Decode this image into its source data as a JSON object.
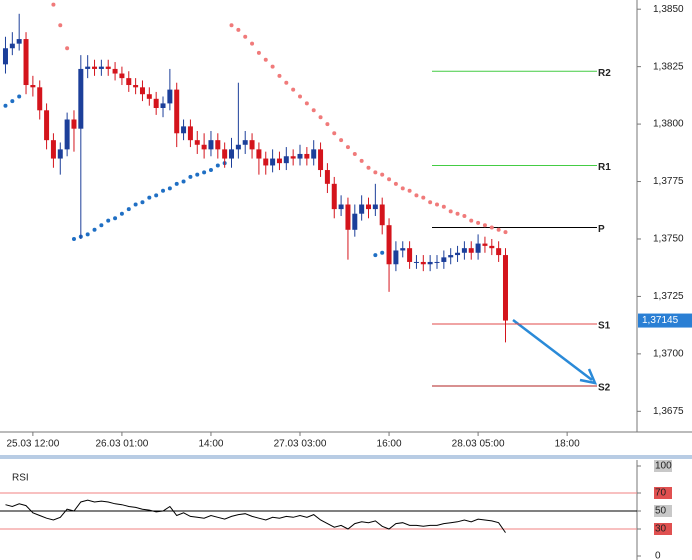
{
  "chart_data": [
    {
      "type": "candlestick",
      "xlim": [
        -0.8,
        92.2
      ],
      "xticks": [
        {
          "value": 4,
          "label": "25.03 12:00"
        },
        {
          "value": 17,
          "label": "26.03 01:00"
        },
        {
          "value": 30,
          "label": "14:00"
        },
        {
          "value": 43,
          "label": "27.03 03:00"
        },
        {
          "value": 56,
          "label": "16:00"
        },
        {
          "value": 69,
          "label": "28.03 05:00"
        },
        {
          "value": 82,
          "label": "18:00"
        }
      ],
      "ylim": [
        1.3666,
        1.3854
      ],
      "yticks": [
        {
          "value": 1.385,
          "label": "1,3850"
        },
        {
          "value": 1.3825,
          "label": "1,3825"
        },
        {
          "value": 1.38,
          "label": "1,3800"
        },
        {
          "value": 1.3775,
          "label": "1,3775"
        },
        {
          "value": 1.375,
          "label": "1,3750"
        },
        {
          "value": 1.3725,
          "label": "1,3725"
        },
        {
          "value": 1.37,
          "label": "1,3700"
        },
        {
          "value": 1.3675,
          "label": "1,3675"
        }
      ],
      "up_color": "#1c3f9a",
      "down_color": "#d4141c",
      "open": [
        1.3826,
        1.3833,
        1.3835,
        1.3837,
        1.3817,
        1.3816,
        1.3806,
        1.3793,
        1.3785,
        1.3789,
        1.3802,
        1.3798,
        1.3824,
        1.3825,
        1.3824,
        1.3825,
        1.3824,
        1.3822,
        1.382,
        1.3817,
        1.3816,
        1.3813,
        1.3811,
        1.3807,
        1.3809,
        1.3815,
        1.3796,
        1.3799,
        1.3793,
        1.3791,
        1.3789,
        1.3793,
        1.3789,
        1.3785,
        1.3789,
        1.3791,
        1.3793,
        1.3789,
        1.3785,
        1.3782,
        1.3785,
        1.3783,
        1.3786,
        1.3785,
        1.3787,
        1.3785,
        1.3789,
        1.378,
        1.3774,
        1.3763,
        1.3765,
        1.3754,
        1.3761,
        1.3765,
        1.3763,
        1.3765,
        1.3756,
        1.3739,
        1.3745,
        1.3746,
        1.374,
        1.374,
        1.3739,
        1.374,
        1.374,
        1.3742,
        1.3743,
        1.3744,
        1.3746,
        1.3744,
        1.3748,
        1.3747,
        1.3746,
        1.3743
      ],
      "high": [
        1.3838,
        1.384,
        1.3848,
        1.384,
        1.3821,
        1.3819,
        1.3809,
        1.3796,
        1.3792,
        1.3805,
        1.3806,
        1.383,
        1.383,
        1.3828,
        1.3828,
        1.3828,
        1.3827,
        1.3825,
        1.3823,
        1.382,
        1.3819,
        1.3816,
        1.3814,
        1.3812,
        1.3824,
        1.3818,
        1.3802,
        1.3802,
        1.3797,
        1.3796,
        1.3797,
        1.3796,
        1.3792,
        1.3794,
        1.3818,
        1.3797,
        1.3796,
        1.3792,
        1.3788,
        1.3789,
        1.3788,
        1.379,
        1.3789,
        1.3791,
        1.379,
        1.3793,
        1.3792,
        1.3783,
        1.3777,
        1.3769,
        1.3768,
        1.3765,
        1.3769,
        1.3768,
        1.3774,
        1.3768,
        1.3759,
        1.3749,
        1.3749,
        1.3749,
        1.3743,
        1.3743,
        1.3743,
        1.3743,
        1.3745,
        1.3746,
        1.3747,
        1.3749,
        1.3749,
        1.3752,
        1.3751,
        1.375,
        1.3749,
        1.3746
      ],
      "low": [
        1.3822,
        1.383,
        1.3832,
        1.3813,
        1.3812,
        1.3802,
        1.3789,
        1.3781,
        1.3778,
        1.3786,
        1.3788,
        1.375,
        1.382,
        1.3821,
        1.3821,
        1.3821,
        1.3819,
        1.3817,
        1.3814,
        1.3813,
        1.381,
        1.3808,
        1.3804,
        1.3803,
        1.3806,
        1.379,
        1.3793,
        1.379,
        1.3787,
        1.3785,
        1.3786,
        1.3785,
        1.3781,
        1.3781,
        1.3785,
        1.3787,
        1.3785,
        1.3778,
        1.3778,
        1.3779,
        1.378,
        1.378,
        1.3782,
        1.3782,
        1.3782,
        1.3782,
        1.3777,
        1.377,
        1.3759,
        1.376,
        1.3741,
        1.3751,
        1.3758,
        1.3759,
        1.376,
        1.3752,
        1.3727,
        1.3736,
        1.3742,
        1.3737,
        1.3737,
        1.3736,
        1.3736,
        1.3737,
        1.3737,
        1.3739,
        1.374,
        1.3741,
        1.3741,
        1.3741,
        1.3744,
        1.3743,
        1.374,
        1.3705
      ],
      "close": [
        1.3833,
        1.3835,
        1.3837,
        1.3817,
        1.3816,
        1.3806,
        1.3793,
        1.3785,
        1.3789,
        1.3802,
        1.3798,
        1.3824,
        1.3825,
        1.3824,
        1.3825,
        1.3824,
        1.3822,
        1.382,
        1.3817,
        1.3816,
        1.3813,
        1.3811,
        1.3807,
        1.3809,
        1.3815,
        1.3796,
        1.3799,
        1.3793,
        1.3791,
        1.3789,
        1.3793,
        1.3789,
        1.3785,
        1.3789,
        1.3791,
        1.3793,
        1.3789,
        1.3785,
        1.3782,
        1.3785,
        1.3783,
        1.3786,
        1.3785,
        1.3787,
        1.3785,
        1.3789,
        1.378,
        1.3774,
        1.3763,
        1.3765,
        1.3754,
        1.3761,
        1.3765,
        1.3763,
        1.3765,
        1.3756,
        1.3739,
        1.3745,
        1.3746,
        1.374,
        1.374,
        1.3739,
        1.374,
        1.374,
        1.3742,
        1.3743,
        1.3744,
        1.3746,
        1.3744,
        1.3748,
        1.3747,
        1.3746,
        1.3743,
        1.37145
      ],
      "sar": [
        {
          "color": "#f07a7a",
          "values": [
            null,
            null,
            null,
            null,
            null,
            null,
            null,
            1.3852,
            1.3843,
            1.3833,
            null,
            null,
            null,
            null,
            null,
            null,
            null,
            null,
            null,
            null,
            null,
            null,
            null,
            null,
            null,
            null,
            null,
            null,
            null,
            null,
            null,
            null,
            null,
            1.3843,
            1.3841,
            1.3838,
            1.3835,
            1.3831,
            1.3828,
            1.3825,
            1.3821,
            1.3818,
            1.3815,
            1.3812,
            1.3809,
            1.3806,
            1.3803,
            1.38,
            1.3796,
            1.3793,
            1.379,
            1.3787,
            1.3784,
            1.3781,
            1.3779,
            1.3778,
            1.3776,
            1.3774,
            1.3772,
            1.3771,
            1.3769,
            1.3768,
            1.3766,
            1.3765,
            1.3764,
            1.3762,
            1.3761,
            1.376,
            1.3758,
            1.3757,
            1.3756,
            1.3755,
            1.3754,
            1.3753
          ]
        },
        {
          "color": "#1f6fc4",
          "values": [
            1.3808,
            1.381,
            1.3812,
            null,
            null,
            null,
            null,
            null,
            null,
            null,
            1.375,
            1.3751,
            1.3752,
            1.3754,
            1.3756,
            1.3758,
            1.3759,
            1.3761,
            1.3763,
            1.3765,
            1.3766,
            1.3768,
            1.3769,
            1.3771,
            1.3772,
            1.3774,
            1.3775,
            1.3777,
            1.3778,
            1.3779,
            1.378,
            1.3782,
            1.3783,
            null,
            null,
            null,
            null,
            null,
            null,
            null,
            null,
            null,
            null,
            null,
            null,
            null,
            null,
            null,
            null,
            null,
            null,
            null,
            null,
            null,
            1.3743,
            1.3744,
            1.3745,
            null,
            null,
            null,
            null,
            null,
            null,
            null,
            null,
            null,
            null,
            null,
            null,
            null,
            null,
            null,
            null,
            null
          ]
        }
      ],
      "pivots": [
        {
          "name": "R2",
          "value": 1.3823,
          "color": "#44cc44"
        },
        {
          "name": "R1",
          "value": 1.3782,
          "color": "#44cc44"
        },
        {
          "name": "P",
          "value": 1.3755,
          "color": "#000000"
        },
        {
          "name": "S1",
          "value": 1.3713,
          "color": "#e04848"
        },
        {
          "name": "S2",
          "value": 1.3686,
          "color": "#b02020"
        }
      ],
      "last_price": {
        "value": 1.37145,
        "label": "1,37145"
      }
    },
    {
      "type": "line",
      "title": "RSI",
      "color": "#000000",
      "values": [
        57,
        55,
        58,
        56,
        48,
        45,
        42,
        40,
        43,
        52,
        50,
        60,
        62,
        60,
        61,
        60,
        58,
        57,
        55,
        54,
        52,
        51,
        49,
        50,
        55,
        45,
        48,
        44,
        43,
        42,
        45,
        43,
        41,
        44,
        46,
        47,
        44,
        42,
        40,
        43,
        42,
        44,
        43,
        45,
        43,
        46,
        40,
        36,
        32,
        34,
        30,
        36,
        38,
        37,
        39,
        33,
        30,
        36,
        37,
        34,
        34,
        33,
        34,
        34,
        36,
        37,
        38,
        40,
        38,
        41,
        40,
        39,
        37,
        26
      ],
      "ylim": [
        0,
        100
      ],
      "yticks": [
        100,
        70,
        50,
        30,
        0
      ],
      "tick_boxes": [
        "#c8c8c8",
        "#e05050",
        "#c8c8c8",
        "#e05050",
        null
      ],
      "levels": [
        70,
        50,
        30
      ],
      "level_colors": [
        "#f08080",
        "#000000",
        "#f08080"
      ]
    }
  ]
}
